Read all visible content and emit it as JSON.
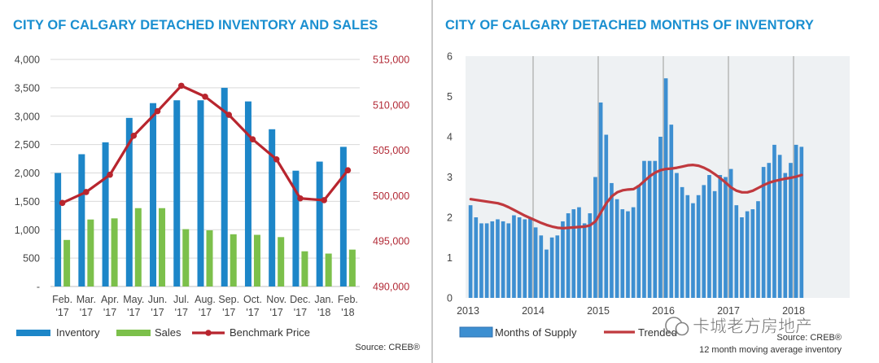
{
  "left_chart": {
    "title": "CITY OF CALGARY DETACHED INVENTORY AND SALES",
    "source": "Source: CREB®",
    "legend": [
      "Inventory",
      "Sales",
      "Benchmark Price"
    ],
    "colors": {
      "inventory": "#1d86c8",
      "sales": "#7cc04b",
      "price": "#b8252e",
      "grid": "#d9d9d9",
      "axis_text": "#444444",
      "red_text": "#b22a36"
    }
  },
  "right_chart": {
    "title": "CITY OF CALGARY DETACHED MONTHS OF INVENTORY",
    "source": "Source: CREB®",
    "note": "12 month moving average inventory",
    "legend": [
      "Months of Supply",
      "Trended"
    ],
    "watermark": "卡城老方房地产",
    "colors": {
      "bars": "#3d8fd1",
      "bar_edge": "#2f72b0",
      "trend": "#c0393e",
      "plot_bg": "#eef1f3",
      "gridline": "#9a9a9a"
    }
  },
  "chart_data": [
    {
      "type": "bar",
      "title": "CITY OF CALGARY DETACHED INVENTORY AND SALES",
      "categories": [
        [
          "Feb.",
          "'17"
        ],
        [
          "Mar.",
          "'17"
        ],
        [
          "Apr.",
          "'17"
        ],
        [
          "May.",
          "'17"
        ],
        [
          "Jun.",
          "'17"
        ],
        [
          "Jul.",
          "'17"
        ],
        [
          "Aug.",
          "'17"
        ],
        [
          "Sep.",
          "'17"
        ],
        [
          "Oct.",
          "'17"
        ],
        [
          "Nov.",
          "'17"
        ],
        [
          "Dec.",
          "'17"
        ],
        [
          "Jan.",
          "'18"
        ],
        [
          "Feb.",
          "'18"
        ]
      ],
      "series": [
        {
          "name": "Inventory",
          "axis": "left",
          "kind": "bar",
          "values": [
            2000,
            2330,
            2540,
            2970,
            3230,
            3280,
            3280,
            3500,
            3260,
            2770,
            2040,
            2200,
            2460
          ]
        },
        {
          "name": "Sales",
          "axis": "left",
          "kind": "bar",
          "values": [
            820,
            1180,
            1200,
            1380,
            1380,
            1010,
            990,
            920,
            910,
            870,
            620,
            580,
            650
          ]
        },
        {
          "name": "Benchmark Price",
          "axis": "right",
          "kind": "line",
          "values": [
            499200,
            500400,
            502300,
            506600,
            509300,
            512100,
            510900,
            508900,
            506200,
            504000,
            499700,
            499500,
            502800
          ]
        }
      ],
      "y_left": {
        "min": 0,
        "max": 4000,
        "ticks": [
          0,
          500,
          1000,
          1500,
          2000,
          2500,
          3000,
          3500,
          4000
        ],
        "tick_labels": [
          "-",
          "500",
          "1,000",
          "1,500",
          "2,000",
          "2,500",
          "3,000",
          "3,500",
          "4,000"
        ]
      },
      "y_right": {
        "min": 490000,
        "max": 515000,
        "ticks": [
          490000,
          495000,
          500000,
          505000,
          510000,
          515000
        ],
        "tick_labels": [
          "490,000",
          "495,000",
          "500,000",
          "505,000",
          "510,000",
          "515,000"
        ]
      },
      "grid": true
    },
    {
      "type": "bar",
      "title": "CITY OF CALGARY DETACHED MONTHS OF INVENTORY",
      "x_start": "2013-01",
      "x_labels": [
        "2013",
        "2014",
        "2015",
        "2016",
        "2017",
        "2018"
      ],
      "y_ticks": [
        0,
        1,
        2,
        3,
        4,
        5,
        6
      ],
      "y_tick_labels": [
        "0",
        "1",
        "2",
        "3",
        "4",
        "5",
        "6"
      ],
      "ylim": [
        0,
        6
      ],
      "series": [
        {
          "name": "Months of Supply",
          "kind": "bar",
          "values": [
            2.3,
            2.0,
            1.85,
            1.85,
            1.9,
            1.95,
            1.9,
            1.85,
            2.05,
            2.0,
            1.95,
            2.0,
            1.75,
            1.55,
            1.2,
            1.5,
            1.55,
            1.9,
            2.1,
            2.2,
            2.25,
            1.85,
            2.1,
            3.0,
            4.85,
            4.05,
            2.85,
            2.45,
            2.2,
            2.15,
            2.25,
            2.8,
            3.4,
            3.4,
            3.4,
            4.0,
            5.45,
            4.3,
            3.1,
            2.75,
            2.55,
            2.35,
            2.55,
            2.8,
            3.05,
            2.65,
            3.05,
            3.0,
            3.2,
            2.3,
            2.0,
            2.15,
            2.2,
            2.4,
            3.25,
            3.35,
            3.8,
            3.55,
            3.1,
            3.35,
            3.8,
            3.75
          ]
        },
        {
          "name": "Trended",
          "kind": "line",
          "values": [
            2.45,
            2.43,
            2.41,
            2.39,
            2.37,
            2.35,
            2.31,
            2.25,
            2.18,
            2.11,
            2.04,
            1.98,
            1.92,
            1.86,
            1.81,
            1.77,
            1.74,
            1.73,
            1.74,
            1.75,
            1.76,
            1.77,
            1.8,
            1.9,
            2.12,
            2.35,
            2.52,
            2.62,
            2.67,
            2.69,
            2.7,
            2.78,
            2.9,
            3.02,
            3.11,
            3.17,
            3.2,
            3.21,
            3.23,
            3.26,
            3.29,
            3.3,
            3.28,
            3.23,
            3.16,
            3.07,
            2.97,
            2.86,
            2.74,
            2.66,
            2.62,
            2.62,
            2.66,
            2.73,
            2.8,
            2.86,
            2.9,
            2.93,
            2.96,
            2.98,
            3.01,
            3.05
          ]
        }
      ],
      "grid": true
    }
  ]
}
